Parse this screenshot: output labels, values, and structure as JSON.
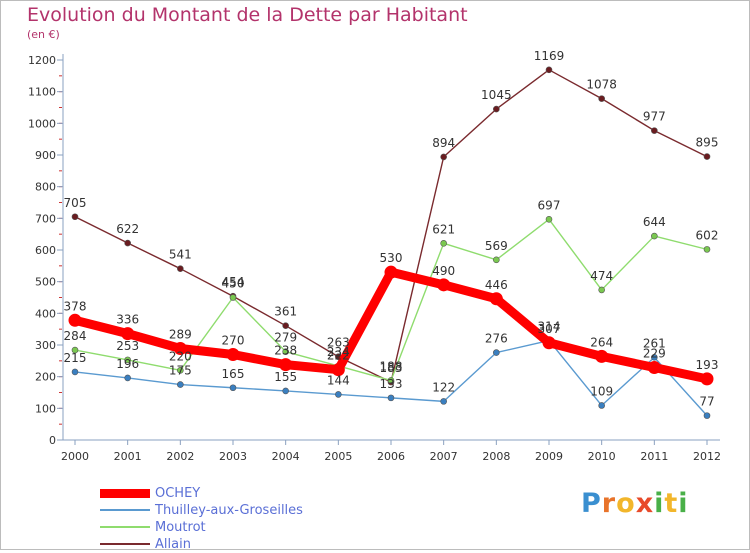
{
  "title": "Evolution du Montant de la Dette par Habitant",
  "unit_label": "(en €)",
  "logo": {
    "text": "Proxiti",
    "letters": [
      {
        "ch": "P",
        "color": "#3a8fd0"
      },
      {
        "ch": "r",
        "color": "#e8732a"
      },
      {
        "ch": "o",
        "color": "#f2b62b"
      },
      {
        "ch": "x",
        "color": "#e84a2a"
      },
      {
        "ch": "i",
        "color": "#49b048"
      },
      {
        "ch": "t",
        "color": "#f2b62b"
      },
      {
        "ch": "i",
        "color": "#49b048"
      }
    ]
  },
  "chart_data": {
    "type": "line",
    "x": [
      "2000",
      "2001",
      "2002",
      "2003",
      "2004",
      "2005",
      "2006",
      "2007",
      "2008",
      "2009",
      "2010",
      "2011",
      "2012"
    ],
    "ylim": [
      0,
      1200
    ],
    "yticks": [
      0,
      100,
      200,
      300,
      400,
      500,
      600,
      700,
      800,
      900,
      1000,
      1100,
      1200
    ],
    "grid": false,
    "legend_position": "bottom-left",
    "series": [
      {
        "name": "Allain",
        "color": "#7a2a2e",
        "marker": "#6a1c20",
        "width": 1.4,
        "values": [
          705,
          622,
          541,
          454,
          361,
          263,
          183,
          894,
          1045,
          1169,
          1078,
          977,
          895
        ]
      },
      {
        "name": "Moutrot",
        "color": "#8fdc6e",
        "marker": "#7ac850",
        "width": 1.4,
        "values": [
          284,
          253,
          220,
          450,
          279,
          234,
          188,
          621,
          569,
          697,
          474,
          644,
          602
        ]
      },
      {
        "name": "Thuilley-aux-Groseilles",
        "color": "#5a9ad0",
        "marker": "#3a7fc0",
        "width": 1.4,
        "values": [
          215,
          196,
          175,
          165,
          155,
          144,
          133,
          122,
          276,
          314,
          109,
          261,
          77
        ]
      },
      {
        "name": "OCHEY",
        "color": "#ff0000",
        "marker": "#ff0000",
        "width": 9,
        "values": [
          378,
          336,
          289,
          270,
          238,
          222,
          530,
          490,
          446,
          307,
          264,
          229,
          193
        ]
      }
    ]
  },
  "legend": [
    {
      "name": "OCHEY",
      "color": "#ff0000",
      "width": 9
    },
    {
      "name": "Thuilley-aux-Groseilles",
      "color": "#5a9ad0",
      "width": 2
    },
    {
      "name": "Moutrot",
      "color": "#8fdc6e",
      "width": 2
    },
    {
      "name": "Allain",
      "color": "#7a2a2e",
      "width": 2
    }
  ]
}
